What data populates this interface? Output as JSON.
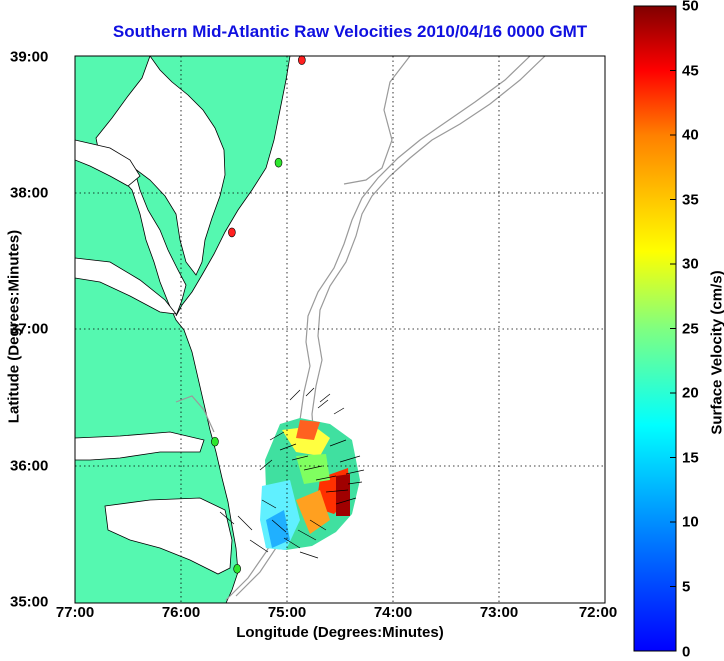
{
  "map": {
    "title": "Southern Mid-Atlantic Raw Velocities 2010/04/16 0000 GMT",
    "xlabel": "Longitude (Degrees:Minutes)",
    "ylabel": "Latitude (Degrees:Minutes)",
    "x_ticks": [
      "77:00",
      "76:00",
      "75:00",
      "74:00",
      "73:00",
      "72:00"
    ],
    "y_ticks": [
      "39:00",
      "38:00",
      "37:00",
      "36:00",
      "35:00"
    ],
    "lon_range": [
      -77,
      -72
    ],
    "lat_range": [
      35,
      39
    ],
    "grid": "dotted",
    "land_color": "#55f8b0",
    "coast_color": "#000000",
    "bathymetry_color": "#9a9a9a",
    "stations": [
      {
        "color": "#ff2020",
        "lon": -74.86,
        "lat": 38.97
      },
      {
        "color": "#2ee62e",
        "lon": -75.08,
        "lat": 38.22
      },
      {
        "color": "#ff2020",
        "lon": -75.52,
        "lat": 37.71
      },
      {
        "color": "#2ee62e",
        "lon": -75.68,
        "lat": 36.18
      },
      {
        "color": "#2ee62e",
        "lon": -75.47,
        "lat": 35.25
      }
    ]
  },
  "colorbar": {
    "label": "Surface Velocity (cm/s)",
    "min": 0,
    "max": 50,
    "ticks": [
      "0",
      "5",
      "10",
      "15",
      "20",
      "25",
      "30",
      "35",
      "40",
      "45",
      "50"
    ],
    "colormap": "jet"
  }
}
